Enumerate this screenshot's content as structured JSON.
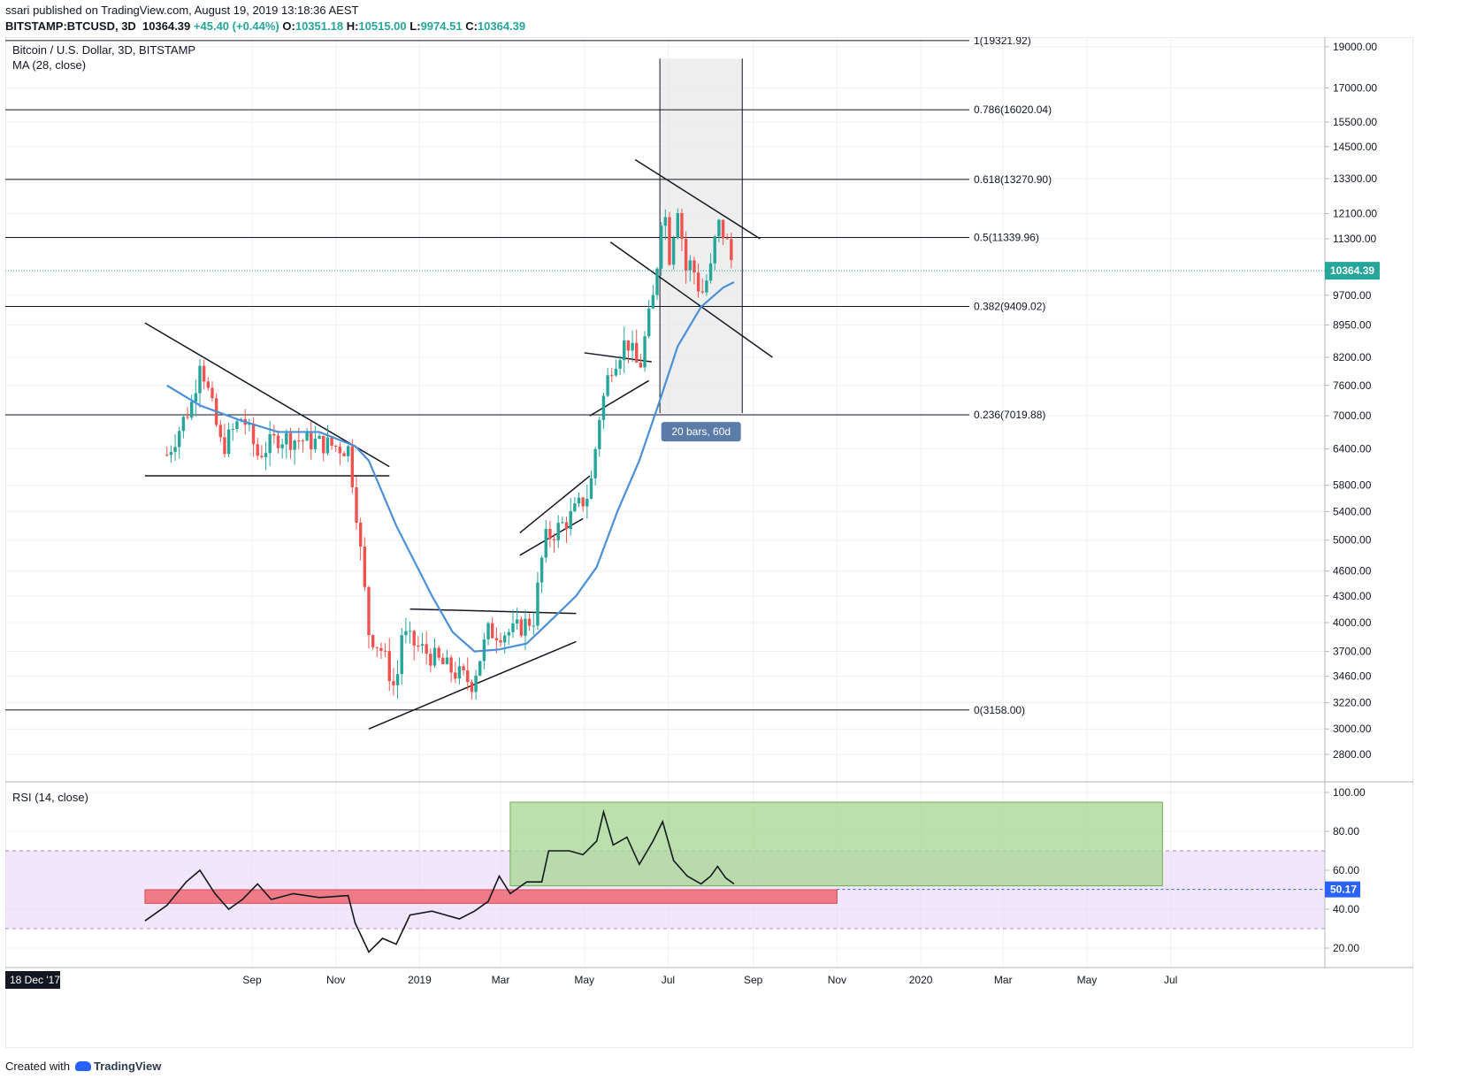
{
  "header": {
    "publisher": "ssari",
    "published_text": "published on TradingView.com, August 19, 2019 13:18:36 AEST",
    "symbol": "BITSTAMP:BTCUSD, 3D",
    "last": "10364.39",
    "change": "+45.40 (+0.44%)",
    "o_key": "O:",
    "o_val": "10351.18",
    "h_key": "H:",
    "h_val": "10515.00",
    "l_key": "L:",
    "l_val": "9974.51",
    "c_key": "C:",
    "c_val": "10364.39"
  },
  "legend": {
    "title": "Bitcoin / U.S. Dollar, 3D, BITSTAMP",
    "ma": "MA (28, close)",
    "rsi": "RSI (14, close)"
  },
  "footer": {
    "created": "Created with",
    "brand": "TradingView"
  },
  "colors": {
    "up": "#26a69a",
    "down": "#ef5350",
    "ma": "#4a90d9",
    "rsi": "#131722",
    "rsi_band": "#e9d5f7",
    "green_box": "#a5d58f",
    "red_box": "#ef6f7a",
    "grey_box": "#e8e8e8"
  },
  "chart_data": [
    {
      "type": "candlestick",
      "title": "Bitcoin / U.S. Dollar, 3D, BITSTAMP",
      "x_range": [
        "2017-12-18",
        "2020-08-05"
      ],
      "y_scale": "log",
      "y_range": [
        2600,
        19500
      ],
      "y_ticks": [
        19000,
        17000,
        15500,
        14500,
        13300,
        12100,
        11300,
        10364.39,
        9700,
        8950,
        8200,
        7600,
        7000,
        6400,
        5800,
        5400,
        5000,
        4600,
        4300,
        4000,
        3700,
        3460,
        3220,
        3000,
        2800
      ],
      "y_tick_labels": [
        "19000.00",
        "17000.00",
        "15500.00",
        "14500.00",
        "13300.00",
        "12100.00",
        "11300.00",
        "10364.39",
        "9700.00",
        "8950.00",
        "8200.00",
        "7600.00",
        "7000.00",
        "6400.00",
        "5800.00",
        "5400.00",
        "5000.00",
        "4600.00",
        "4300.00",
        "4000.00",
        "3700.00",
        "3460.00",
        "3220.00",
        "3000.00",
        "2800.00"
      ],
      "x_tick_labels": [
        "18 Dec '17",
        "Sep",
        "Nov",
        "2019",
        "Mar",
        "May",
        "Jul",
        "Sep",
        "Nov",
        "2020",
        "Mar",
        "May",
        "Jul"
      ],
      "x_tick_dates": [
        "2018-07-01",
        "2018-09-01",
        "2018-11-01",
        "2019-01-01",
        "2019-03-01",
        "2019-05-01",
        "2019-07-01",
        "2019-09-01",
        "2019-11-01",
        "2020-01-01",
        "2020-03-01",
        "2020-05-01",
        "2020-07-01"
      ],
      "close_path": [
        [
          "2018-07-01",
          6300
        ],
        [
          "2018-07-20",
          7300
        ],
        [
          "2018-07-25",
          8200
        ],
        [
          "2018-08-10",
          6400
        ],
        [
          "2018-08-25",
          7000
        ],
        [
          "2018-09-05",
          6300
        ],
        [
          "2018-09-20",
          6600
        ],
        [
          "2018-10-10",
          6550
        ],
        [
          "2018-11-10",
          6400
        ],
        [
          "2018-11-15",
          5600
        ],
        [
          "2018-11-25",
          3900
        ],
        [
          "2018-12-05",
          3700
        ],
        [
          "2018-12-15",
          3300
        ],
        [
          "2018-12-18",
          3900
        ],
        [
          "2018-12-25",
          3800
        ],
        [
          "2019-01-05",
          3700
        ],
        [
          "2019-01-20",
          3550
        ],
        [
          "2019-02-08",
          3400
        ],
        [
          "2019-02-20",
          3900
        ],
        [
          "2019-03-10",
          3900
        ],
        [
          "2019-03-25",
          4050
        ],
        [
          "2019-04-02",
          5000
        ],
        [
          "2019-04-20",
          5300
        ],
        [
          "2019-05-05",
          5700
        ],
        [
          "2019-05-12",
          7000
        ],
        [
          "2019-05-20",
          8000
        ],
        [
          "2019-06-01",
          8600
        ],
        [
          "2019-06-10",
          7900
        ],
        [
          "2019-06-15",
          8800
        ],
        [
          "2019-06-20",
          9600
        ],
        [
          "2019-06-25",
          11300
        ],
        [
          "2019-06-27",
          12800
        ],
        [
          "2019-07-02",
          10800
        ],
        [
          "2019-07-08",
          12400
        ],
        [
          "2019-07-14",
          10400
        ],
        [
          "2019-07-18",
          10600
        ],
        [
          "2019-07-25",
          9700
        ],
        [
          "2019-08-01",
          10400
        ],
        [
          "2019-08-06",
          11800
        ],
        [
          "2019-08-12",
          11300
        ],
        [
          "2019-08-18",
          10364.39
        ]
      ],
      "ma": {
        "name": "MA (28, close)",
        "points": [
          [
            "2018-07-01",
            7600
          ],
          [
            "2018-07-25",
            7200
          ],
          [
            "2018-08-25",
            6900
          ],
          [
            "2018-09-20",
            6700
          ],
          [
            "2018-10-20",
            6700
          ],
          [
            "2018-11-15",
            6450
          ],
          [
            "2018-11-25",
            6200
          ],
          [
            "2018-12-15",
            5200
          ],
          [
            "2019-01-10",
            4300
          ],
          [
            "2019-01-25",
            3900
          ],
          [
            "2019-02-10",
            3700
          ],
          [
            "2019-02-28",
            3720
          ],
          [
            "2019-03-20",
            3780
          ],
          [
            "2019-04-05",
            4000
          ],
          [
            "2019-04-25",
            4300
          ],
          [
            "2019-05-10",
            4650
          ],
          [
            "2019-05-25",
            5400
          ],
          [
            "2019-06-10",
            6200
          ],
          [
            "2019-06-25",
            7300
          ],
          [
            "2019-07-08",
            8450
          ],
          [
            "2019-07-25",
            9400
          ],
          [
            "2019-08-10",
            9900
          ],
          [
            "2019-08-18",
            10050
          ]
        ]
      },
      "fibonacci": [
        {
          "label": "1(19321.92)",
          "value": 19321.92
        },
        {
          "label": "0.786(16020.04)",
          "value": 16020.04
        },
        {
          "label": "0.618(13270.90)",
          "value": 13270.9
        },
        {
          "label": "0.5(11339.96)",
          "value": 11339.96
        },
        {
          "label": "0.382(9409.02)",
          "value": 9409.02
        },
        {
          "label": "0.236(7019.88)",
          "value": 7019.88
        },
        {
          "label": "0(3158.00)",
          "value": 3158.0
        }
      ],
      "range_box": {
        "from": "2019-06-25",
        "to": "2019-08-24",
        "low": 7050,
        "high": 18400,
        "label": "20 bars, 60d"
      },
      "last_price_label": "10364.39",
      "trendlines": [
        [
          [
            "2018-06-15",
            9000
          ],
          [
            "2018-12-10",
            6100
          ]
        ],
        [
          [
            "2018-06-15",
            5950
          ],
          [
            "2018-12-10",
            5950
          ]
        ],
        [
          [
            "2018-11-25",
            3000
          ],
          [
            "2019-04-25",
            3800
          ]
        ],
        [
          [
            "2018-12-25",
            4150
          ],
          [
            "2019-04-25",
            4100
          ]
        ],
        [
          [
            "2019-03-15",
            4800
          ],
          [
            "2019-04-30",
            5300
          ]
        ],
        [
          [
            "2019-03-15",
            5100
          ],
          [
            "2019-05-05",
            5950
          ]
        ],
        [
          [
            "2019-05-05",
            7000
          ],
          [
            "2019-06-17",
            7700
          ]
        ],
        [
          [
            "2019-05-01",
            8300
          ],
          [
            "2019-06-19",
            8100
          ]
        ],
        [
          [
            "2019-06-07",
            14000
          ],
          [
            "2019-09-06",
            11300
          ]
        ],
        [
          [
            "2019-05-20",
            11200
          ],
          [
            "2019-09-15",
            8200
          ]
        ]
      ]
    },
    {
      "type": "line",
      "title": "RSI (14, close)",
      "y_range": [
        10,
        105
      ],
      "y_ticks": [
        100,
        80,
        60,
        40,
        20
      ],
      "y_tick_labels": [
        "100.00",
        "80.00",
        "60.00",
        "40.00",
        "20.00"
      ],
      "band": [
        30,
        70
      ],
      "last_value": 50.17,
      "last_value_label": "50.17",
      "series": [
        {
          "points": [
            [
              "2018-06-15",
              34
            ],
            [
              "2018-07-01",
              42
            ],
            [
              "2018-07-15",
              54
            ],
            [
              "2018-07-25",
              60
            ],
            [
              "2018-08-05",
              48
            ],
            [
              "2018-08-15",
              40
            ],
            [
              "2018-08-25",
              45
            ],
            [
              "2018-09-05",
              53
            ],
            [
              "2018-09-15",
              45
            ],
            [
              "2018-10-01",
              48
            ],
            [
              "2018-10-20",
              46
            ],
            [
              "2018-11-10",
              47
            ],
            [
              "2018-11-15",
              33
            ],
            [
              "2018-11-25",
              18
            ],
            [
              "2018-12-05",
              25
            ],
            [
              "2018-12-15",
              22
            ],
            [
              "2018-12-25",
              37
            ],
            [
              "2019-01-10",
              39
            ],
            [
              "2019-01-30",
              35
            ],
            [
              "2019-02-10",
              39
            ],
            [
              "2019-02-20",
              44
            ],
            [
              "2019-02-28",
              57
            ],
            [
              "2019-03-08",
              48
            ],
            [
              "2019-03-20",
              54
            ],
            [
              "2019-03-31",
              54
            ],
            [
              "2019-04-05",
              70
            ],
            [
              "2019-04-20",
              70
            ],
            [
              "2019-04-30",
              68
            ],
            [
              "2019-05-10",
              75
            ],
            [
              "2019-05-15",
              90
            ],
            [
              "2019-05-22",
              73
            ],
            [
              "2019-06-01",
              77
            ],
            [
              "2019-06-10",
              63
            ],
            [
              "2019-06-20",
              75
            ],
            [
              "2019-06-27",
              85
            ],
            [
              "2019-07-05",
              65
            ],
            [
              "2019-07-15",
              57
            ],
            [
              "2019-07-25",
              53
            ],
            [
              "2019-08-01",
              57
            ],
            [
              "2019-08-06",
              62
            ],
            [
              "2019-08-12",
              56
            ],
            [
              "2019-08-18",
              53
            ]
          ]
        }
      ],
      "boxes": [
        {
          "from": "2019-03-08",
          "to": "2020-06-25",
          "low": 52,
          "high": 95,
          "color": "green"
        },
        {
          "from": "2018-06-15",
          "to": "2019-11-01",
          "low": 43,
          "high": 50,
          "color": "red"
        }
      ]
    }
  ]
}
